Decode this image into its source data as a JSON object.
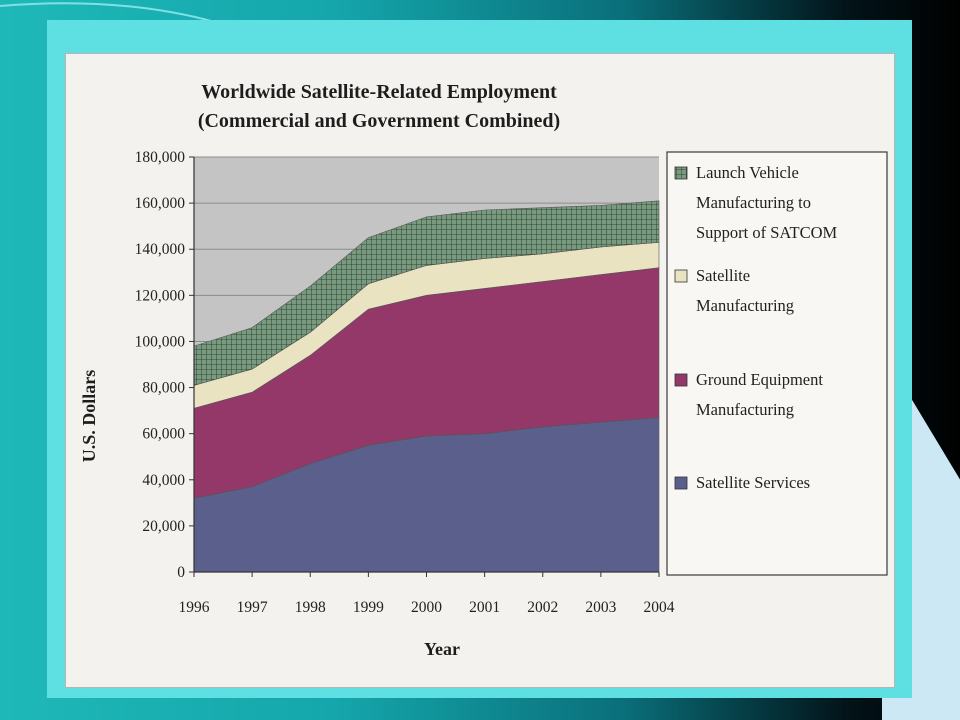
{
  "chart_data": {
    "type": "area",
    "stacked": true,
    "title": "Worldwide Satellite-Related Employment",
    "subtitle": "(Commercial and Government Combined)",
    "xlabel": "Year",
    "ylabel": "U.S. Dollars",
    "x": [
      "1996",
      "1997",
      "1998",
      "1999",
      "2000",
      "2001",
      "2002",
      "2003",
      "2004"
    ],
    "ylim": [
      0,
      180000
    ],
    "yticks": [
      0,
      20000,
      40000,
      60000,
      80000,
      100000,
      120000,
      140000,
      160000,
      180000
    ],
    "ytick_labels": [
      "0",
      "20,000",
      "40,000",
      "60,000",
      "80,000",
      "100,000",
      "120,000",
      "140,000",
      "160,000",
      "180,000"
    ],
    "grid": true,
    "legend_position": "right",
    "series": [
      {
        "name": "Satellite Services",
        "color": "#5a5f8c",
        "values": [
          32000,
          37000,
          47000,
          55000,
          59000,
          60000,
          63000,
          65000,
          67000
        ]
      },
      {
        "name": "Ground Equipment Manufacturing",
        "color": "#94386a",
        "values": [
          39000,
          41000,
          47000,
          59000,
          61000,
          63000,
          63000,
          64000,
          65000
        ]
      },
      {
        "name": "Satellite Manufacturing",
        "color": "#e9e3c2",
        "values": [
          10000,
          10000,
          10000,
          11000,
          13000,
          13000,
          12000,
          12000,
          11000
        ]
      },
      {
        "name": "Launch Vehicle Manufacturing to Support of SATCOM",
        "color": "#7a9a80",
        "hatch": true,
        "values": [
          17000,
          18000,
          20000,
          20000,
          21000,
          21000,
          20000,
          18000,
          18000
        ]
      }
    ],
    "legend_lines": [
      [
        "Launch Vehicle",
        "Manufacturing to",
        "Support of SATCOM"
      ],
      [
        "Satellite",
        "Manufacturing"
      ],
      [
        "Ground Equipment",
        "Manufacturing"
      ],
      [
        "Satellite Services"
      ]
    ]
  }
}
